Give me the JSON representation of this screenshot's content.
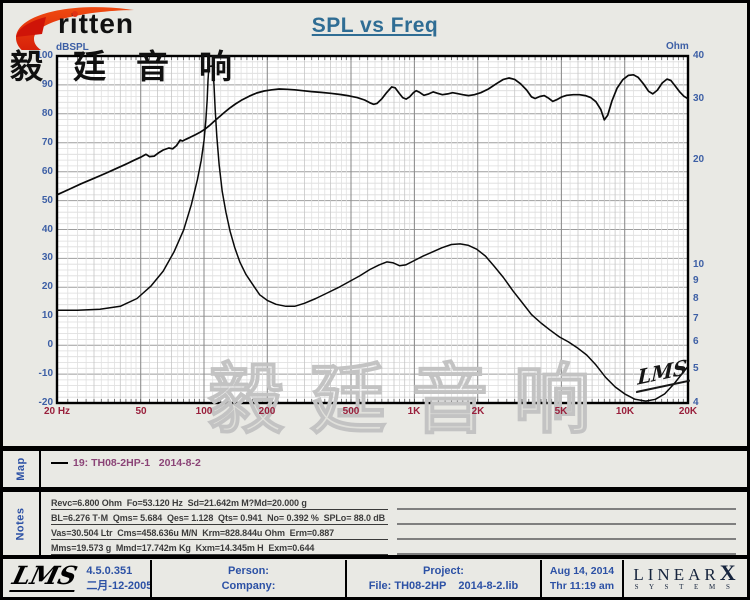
{
  "header": {
    "logo_text": "ritten",
    "logo_cjk": "毅廷音响",
    "title": "SPL vs Freq"
  },
  "chart": {
    "y_left_unit": "dBSPL",
    "y_right_unit": "Ohm",
    "watermark_cjk": "毅廷音响",
    "watermark_lms": "LMS"
  },
  "chart_data": {
    "type": "line",
    "title": "SPL vs Freq",
    "grid": true,
    "x_axis": {
      "label": "Hz",
      "scale": "log",
      "min": 20,
      "max": 20000,
      "tick_values": [
        20,
        50,
        100,
        200,
        500,
        1000,
        2000,
        5000,
        10000,
        20000
      ],
      "tick_labels": [
        "20 Hz",
        "50",
        "100",
        "200",
        "500",
        "1K",
        "2K",
        "5K",
        "10K",
        "20K"
      ]
    },
    "y_left": {
      "label": "dBSPL",
      "scale": "linear",
      "min": -20,
      "max": 100,
      "ticks": [
        100,
        90,
        80,
        70,
        60,
        50,
        40,
        30,
        20,
        10,
        0,
        -10,
        -20
      ]
    },
    "y_right": {
      "label": "Ohm",
      "scale": "log",
      "min": 4,
      "max": 40,
      "ticks": [
        40,
        30,
        20,
        10,
        9,
        8,
        7,
        6,
        5,
        4
      ]
    },
    "series": [
      {
        "name": "SPL dBSPL (19: TH08-2HP-1)",
        "axis": "left",
        "points": [
          [
            20,
            52
          ],
          [
            23,
            54
          ],
          [
            26,
            55.8
          ],
          [
            30,
            57.7
          ],
          [
            34,
            59.4
          ],
          [
            38,
            61
          ],
          [
            42,
            62.4
          ],
          [
            46,
            63.8
          ],
          [
            50,
            65
          ],
          [
            53,
            66
          ],
          [
            55,
            65.2
          ],
          [
            58,
            65.4
          ],
          [
            61,
            66.6
          ],
          [
            64,
            67.5
          ],
          [
            68,
            68.2
          ],
          [
            71,
            67.9
          ],
          [
            74,
            69
          ],
          [
            77,
            70.9
          ],
          [
            79,
            70.6
          ],
          [
            82,
            71.2
          ],
          [
            86,
            71.9
          ],
          [
            91,
            72.8
          ],
          [
            96,
            73.7
          ],
          [
            101,
            74.7
          ],
          [
            106,
            75.9
          ],
          [
            111,
            77.2
          ],
          [
            117,
            78.7
          ],
          [
            124,
            80.3
          ],
          [
            132,
            81.9
          ],
          [
            141,
            83.4
          ],
          [
            152,
            84.9
          ],
          [
            164,
            86.1
          ],
          [
            178,
            87.2
          ],
          [
            193,
            87.9
          ],
          [
            210,
            88.3
          ],
          [
            228,
            88.6
          ],
          [
            248,
            88.5
          ],
          [
            270,
            88.3
          ],
          [
            295,
            88
          ],
          [
            325,
            87.7
          ],
          [
            360,
            87.4
          ],
          [
            400,
            87.1
          ],
          [
            445,
            86.7
          ],
          [
            490,
            86.2
          ],
          [
            535,
            85.6
          ],
          [
            580,
            84.8
          ],
          [
            615,
            83.8
          ],
          [
            640,
            83.3
          ],
          [
            665,
            83.6
          ],
          [
            700,
            85.2
          ],
          [
            740,
            87.4
          ],
          [
            780,
            89.3
          ],
          [
            810,
            89
          ],
          [
            845,
            87.2
          ],
          [
            880,
            85.6
          ],
          [
            915,
            85.1
          ],
          [
            950,
            85.9
          ],
          [
            990,
            87.3
          ],
          [
            1020,
            88
          ],
          [
            1060,
            87.4
          ],
          [
            1110,
            86.4
          ],
          [
            1170,
            86.9
          ],
          [
            1230,
            87.6
          ],
          [
            1290,
            87.1
          ],
          [
            1360,
            86.6
          ],
          [
            1440,
            86.9
          ],
          [
            1520,
            87.3
          ],
          [
            1600,
            87
          ],
          [
            1700,
            86.6
          ],
          [
            1810,
            86.3
          ],
          [
            1930,
            86.6
          ],
          [
            2070,
            87.3
          ],
          [
            2250,
            88.6
          ],
          [
            2450,
            90.4
          ],
          [
            2650,
            91.9
          ],
          [
            2820,
            92.4
          ],
          [
            3000,
            91.9
          ],
          [
            3200,
            90.4
          ],
          [
            3420,
            88.2
          ],
          [
            3600,
            85.9
          ],
          [
            3750,
            85.3
          ],
          [
            3950,
            86
          ],
          [
            4150,
            86.3
          ],
          [
            4350,
            85.4
          ],
          [
            4550,
            84.3
          ],
          [
            4750,
            84.9
          ],
          [
            5000,
            85.8
          ],
          [
            5300,
            86.4
          ],
          [
            5700,
            86.6
          ],
          [
            6100,
            86.6
          ],
          [
            6500,
            86.3
          ],
          [
            6900,
            85.6
          ],
          [
            7300,
            84.2
          ],
          [
            7700,
            81.5
          ],
          [
            8000,
            77.9
          ],
          [
            8300,
            79.5
          ],
          [
            8700,
            84.5
          ],
          [
            9200,
            88.9
          ],
          [
            9800,
            91.8
          ],
          [
            10400,
            93.3
          ],
          [
            11000,
            93.5
          ],
          [
            11600,
            92.6
          ],
          [
            12300,
            90.3
          ],
          [
            13000,
            87.8
          ],
          [
            13600,
            86.9
          ],
          [
            14300,
            88.2
          ],
          [
            15100,
            90.7
          ],
          [
            15900,
            92
          ],
          [
            16600,
            91.5
          ],
          [
            17400,
            89.6
          ],
          [
            18300,
            87.5
          ],
          [
            19100,
            86.1
          ],
          [
            20000,
            85.2
          ]
        ]
      },
      {
        "name": "Impedance Ohm (19: TH08-2HP-1)",
        "axis": "right",
        "points": [
          [
            20,
            7.4
          ],
          [
            25,
            7.4
          ],
          [
            32,
            7.45
          ],
          [
            40,
            7.6
          ],
          [
            48,
            8
          ],
          [
            56,
            8.7
          ],
          [
            64,
            9.6
          ],
          [
            72,
            10.9
          ],
          [
            80,
            12.6
          ],
          [
            87,
            14.9
          ],
          [
            93,
            17.6
          ],
          [
            97,
            20
          ],
          [
            100,
            22.8
          ],
          [
            102,
            26
          ],
          [
            103.5,
            30
          ],
          [
            104.5,
            34
          ],
          [
            105.5,
            37.3
          ],
          [
            110,
            37.5
          ],
          [
            111.5,
            33
          ],
          [
            113,
            28
          ],
          [
            115,
            23.5
          ],
          [
            118,
            19.5
          ],
          [
            122,
            16.3
          ],
          [
            127,
            14.2
          ],
          [
            133,
            12.5
          ],
          [
            140,
            11.2
          ],
          [
            148,
            10.2
          ],
          [
            158,
            9.4
          ],
          [
            170,
            8.8
          ],
          [
            184,
            8.2
          ],
          [
            200,
            7.9
          ],
          [
            220,
            7.7
          ],
          [
            245,
            7.6
          ],
          [
            270,
            7.6
          ],
          [
            300,
            7.75
          ],
          [
            340,
            8
          ],
          [
            385,
            8.3
          ],
          [
            435,
            8.6
          ],
          [
            490,
            8.95
          ],
          [
            550,
            9.3
          ],
          [
            615,
            9.7
          ],
          [
            680,
            10
          ],
          [
            740,
            10.2
          ],
          [
            790,
            10.15
          ],
          [
            850,
            9.95
          ],
          [
            910,
            10
          ],
          [
            1000,
            10.3
          ],
          [
            1100,
            10.6
          ],
          [
            1220,
            10.9
          ],
          [
            1350,
            11.2
          ],
          [
            1500,
            11.45
          ],
          [
            1650,
            11.5
          ],
          [
            1800,
            11.4
          ],
          [
            1980,
            11.1
          ],
          [
            2180,
            10.6
          ],
          [
            2400,
            9.9
          ],
          [
            2650,
            9.2
          ],
          [
            2950,
            8.4
          ],
          [
            3250,
            7.8
          ],
          [
            3600,
            7.2
          ],
          [
            4000,
            6.8
          ],
          [
            4400,
            6.5
          ],
          [
            4900,
            6.2
          ],
          [
            5400,
            6
          ],
          [
            6000,
            5.75
          ],
          [
            6600,
            5.5
          ],
          [
            7300,
            5.15
          ],
          [
            8100,
            4.75
          ],
          [
            9000,
            4.45
          ],
          [
            10000,
            4.25
          ],
          [
            11200,
            4.1
          ],
          [
            12600,
            4.05
          ],
          [
            14000,
            4.1
          ],
          [
            15500,
            4.25
          ],
          [
            17200,
            4.55
          ],
          [
            20000,
            5.1
          ]
        ]
      }
    ]
  },
  "map": {
    "label": "Map",
    "legend": "19: TH08-2HP-1   2014-8-2"
  },
  "notes": {
    "label": "Notes",
    "lines": [
      "Revc=6.800 Ohm  Fo=53.120 Hz  Sd=21.642m M?Md=20.000 g",
      "BL=6.276 T·M  Qms= 5.684  Qes= 1.128  Qts= 0.941  No= 0.392 %  SPLo= 88.0 dB",
      "Vas=30.504 Ltr  Cms=458.636u M/N  Krm=828.844u Ohm  Erm=0.887",
      "Mms=19.573 g  Mmd=17.742m Kg  Kxm=14.345m H  Exm=0.644"
    ]
  },
  "footer": {
    "lms_logo": "LMS",
    "version": "4.5.0.351",
    "version_date": "二月-12-2005",
    "person_label": "Person:",
    "company_label": "Company:",
    "project_label": "Project:",
    "file_label": "File: TH08-2HP    2014-8-2.lib",
    "date": "Aug 14, 2014",
    "time": "Thr 11:19 am",
    "brand_main": "LINEAR",
    "brand_x": "X",
    "brand_sub": "S Y S T E M S"
  },
  "colors": {
    "axis_blue": "#3d5fa5",
    "freq_red": "#99203c",
    "title_teal": "#2f6d94",
    "legend_purple": "#8b4477",
    "logo_red": "#e03214",
    "curve": "#0a0a0a",
    "background": "#e9e9e4"
  }
}
